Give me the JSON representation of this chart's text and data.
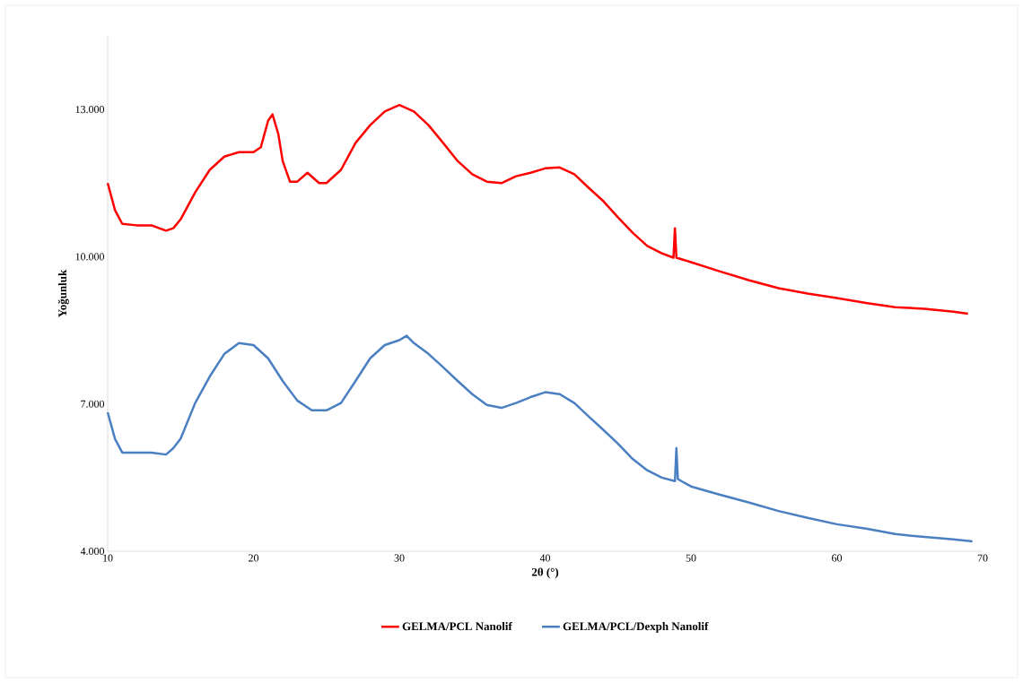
{
  "chart_data": {
    "type": "line",
    "xlabel": "2θ (°)",
    "ylabel": "Yoğunluk",
    "xlim": [
      10,
      70
    ],
    "ylim": [
      4000,
      14500
    ],
    "xticks": [
      10,
      20,
      30,
      40,
      50,
      60,
      70
    ],
    "yticks": [
      {
        "value": 4000,
        "label": "4.000"
      },
      {
        "value": 7000,
        "label": "7.000"
      },
      {
        "value": 10000,
        "label": "10.000"
      },
      {
        "value": 13000,
        "label": "13.000"
      }
    ],
    "legend": "bottom",
    "grid": false,
    "marker": "none",
    "line_style": "solid",
    "series": [
      {
        "name": "GELMA/PCL Nanolif",
        "color": "#ff0000",
        "x": [
          10,
          10.5,
          11,
          12,
          13,
          14,
          14.5,
          15,
          16,
          17,
          18,
          19,
          20,
          20.5,
          21,
          21.3,
          21.7,
          22,
          22.5,
          23,
          23.7,
          24.5,
          25,
          26,
          27,
          28,
          29,
          30,
          31,
          32,
          33,
          34,
          35,
          36,
          37,
          38,
          39,
          40,
          41,
          42,
          43,
          44,
          45,
          46,
          47,
          48,
          48.8,
          48.9,
          49,
          50,
          52,
          54,
          56,
          58,
          60,
          62,
          64,
          66,
          68,
          69
        ],
        "values": [
          11500,
          10950,
          10670,
          10640,
          10640,
          10530,
          10580,
          10760,
          11310,
          11770,
          12040,
          12130,
          12130,
          12230,
          12770,
          12900,
          12500,
          11950,
          11530,
          11530,
          11710,
          11500,
          11500,
          11770,
          12320,
          12680,
          12960,
          13090,
          12960,
          12680,
          12320,
          11950,
          11680,
          11530,
          11500,
          11640,
          11710,
          11800,
          11820,
          11680,
          11400,
          11130,
          10800,
          10490,
          10220,
          10070,
          9980,
          10580,
          9980,
          9890,
          9700,
          9520,
          9360,
          9250,
          9160,
          9060,
          8970,
          8940,
          8880,
          8840
        ]
      },
      {
        "name": "GELMA/PCL/Dexph Nanolif",
        "color": "#4a7fc1",
        "x": [
          10,
          10.5,
          11,
          12,
          13,
          14,
          14.5,
          15,
          16,
          17,
          18,
          19,
          20,
          21,
          22,
          23,
          24,
          25,
          26,
          27,
          28,
          29,
          30,
          30.5,
          31,
          32,
          33,
          34,
          35,
          36,
          37,
          38,
          39,
          40,
          41,
          42,
          43,
          44,
          45,
          46,
          47,
          48,
          48.9,
          49,
          49.1,
          50,
          52,
          54,
          56,
          58,
          60,
          62,
          64,
          66,
          68,
          69.3
        ],
        "values": [
          6830,
          6290,
          6010,
          6010,
          6010,
          5970,
          6100,
          6290,
          7020,
          7560,
          8020,
          8240,
          8200,
          7930,
          7470,
          7070,
          6870,
          6870,
          7020,
          7470,
          7930,
          8200,
          8300,
          8390,
          8240,
          8020,
          7750,
          7470,
          7200,
          6980,
          6920,
          7020,
          7140,
          7240,
          7200,
          7020,
          6740,
          6470,
          6190,
          5880,
          5650,
          5500,
          5430,
          6100,
          5470,
          5320,
          5150,
          4990,
          4820,
          4680,
          4550,
          4460,
          4350,
          4290,
          4240,
          4200
        ]
      }
    ]
  }
}
